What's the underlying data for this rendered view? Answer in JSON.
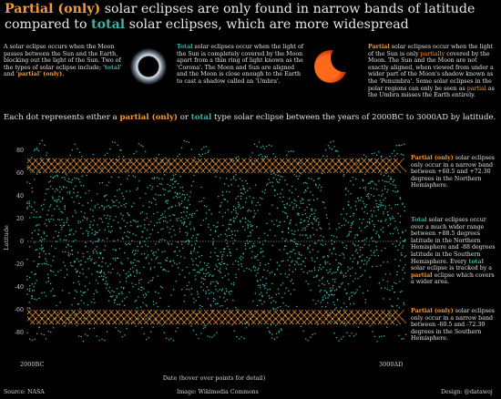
{
  "title": {
    "partial_label": "Partial (only)",
    "text_before_total": " solar eclipses are only found in narrow bands of latitude compared to ",
    "total_label": "total",
    "text_after_total": " solar eclipses, which are more widespread"
  },
  "intro": {
    "left": {
      "text": "A solar eclipse occurs when the Moon passes between the Sun and the Earth, blocking out the light of the Sun.  Two of the types of solar eclipse include; '",
      "total": "total",
      "middle": "' and '",
      "partial": "partial",
      "end": "' (only)."
    },
    "total": {
      "label": "Total",
      "text": " solar eclipses occur when the light of the Sun is completely covered by the Moon apart from a thin ring of light known as the 'Corona'.  The Moon and Sun are aligned and the Moon is close enough to the Earth to cast a shadow called an 'Umbra'."
    },
    "partial": {
      "label": "Partial",
      "text1": " solar eclipses occur when the light of the Sun is only ",
      "partially": "partially",
      "text2": " covered by the Moon. The Sun and the Moon are not exactly aligned, when viewed from under a wider part of the Moon's  shadow known as the 'Penumbra'. Some solar eclipses in the polar regions can only be seen as ",
      "partial2": "partial",
      "text3": " as the Umbra misses the Earth entirely."
    }
  },
  "subtitle": {
    "before": "Each dot represents either a ",
    "partial": "partial (only)",
    "middle": " or ",
    "total": "total",
    "after": " type solar eclipse between the years of 2000BC to 3000AD by latitude."
  },
  "annotations": {
    "north": {
      "label": "Partial (only)",
      "text": " solar eclipses only occur in a narrow band between +60.5 and +72.30 degrees in the Northern Hemisphere."
    },
    "total": {
      "label": "Total",
      "text1": " solar eclipses occur over a much wider range between +88.5 degrees latitude in the Northern Hemisphere and -88 degrees latitude in the Southern Hemisphere.  Every ",
      "total2": "total",
      "text2": " solar eclipse is tracked by a ",
      "partial": "partial",
      "text3": " eclipse which covers a wider area."
    },
    "south": {
      "label": "Partial (only)",
      "text": " solar eclipses only occur in a narrow band between -60.5 and -72.30 degrees in the Southern Hemisphere."
    }
  },
  "footer": {
    "source": "Source: NASA",
    "image": "Image: Wikimedia Commons",
    "design": "Design: @datawoj"
  },
  "colors": {
    "background": "#000000",
    "partial": "#f39a3a",
    "total": "#3bb3a6",
    "text": "#d8d8d8"
  },
  "chart_data": {
    "type": "scatter",
    "xlabel": "Date (hover over points for detail)",
    "ylabel": "Latitude",
    "x_tick_labels": [
      "2000BC",
      "3000AD"
    ],
    "xlim": [
      -2000,
      3000
    ],
    "ylim": [
      -95,
      95
    ],
    "y_ticks": [
      80,
      60,
      40,
      20,
      0,
      -20,
      -40,
      -60,
      -80
    ],
    "zero_line": true,
    "grid": false,
    "series": [
      {
        "name": "partial (only)",
        "color": "#f39a3a",
        "bands": [
          [
            60.5,
            72.3
          ],
          [
            -72.3,
            -60.5
          ]
        ]
      },
      {
        "name": "total",
        "color": "#3bb3a6",
        "range": [
          -88,
          88.5
        ]
      }
    ]
  }
}
